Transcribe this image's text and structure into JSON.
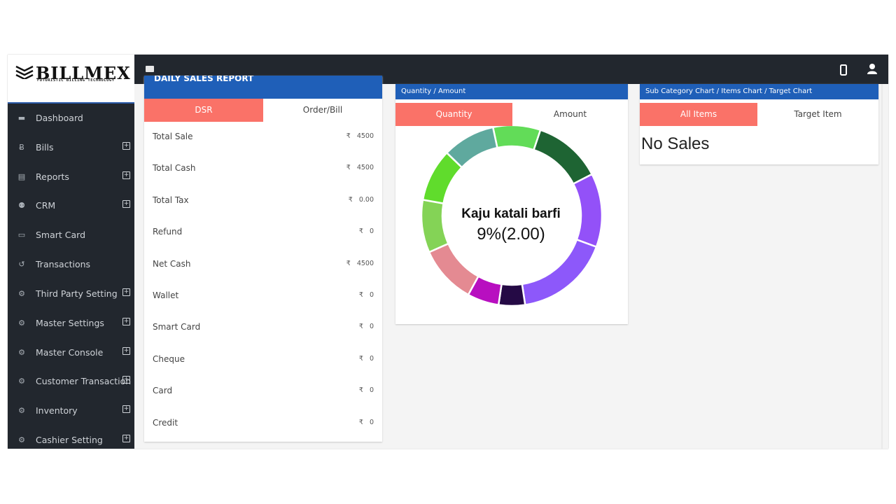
{
  "brand": {
    "name": "BILLMEX",
    "tagline": "FUTURISTIC BILLING TECHNOLOGY"
  },
  "sidebar": {
    "items": [
      {
        "label": "Dashboard",
        "icon": "graduation-cap-icon",
        "glyph": "▬",
        "expandable": false
      },
      {
        "label": "Bills",
        "icon": "bitcoin-icon",
        "glyph": "Ƀ",
        "expandable": true
      },
      {
        "label": "Reports",
        "icon": "area-chart-icon",
        "glyph": "▤",
        "expandable": true
      },
      {
        "label": "CRM",
        "icon": "users-icon",
        "glyph": "⚉",
        "expandable": true
      },
      {
        "label": "Smart Card",
        "icon": "credit-card-icon",
        "glyph": "▭",
        "expandable": false
      },
      {
        "label": "Transactions",
        "icon": "history-icon",
        "glyph": "↺",
        "expandable": false
      },
      {
        "label": "Third Party Setting",
        "icon": "cogs-icon",
        "glyph": "⚙",
        "expandable": true
      },
      {
        "label": "Master Settings",
        "icon": "cogs-icon",
        "glyph": "⚙",
        "expandable": true
      },
      {
        "label": "Master Console",
        "icon": "cog-icon",
        "glyph": "⚙",
        "expandable": true
      },
      {
        "label": "Customer Transaction",
        "icon": "cogs-icon",
        "glyph": "⚙",
        "expandable": true
      },
      {
        "label": "Inventory",
        "icon": "cogs-icon",
        "glyph": "⚙",
        "expandable": true
      },
      {
        "label": "Cashier Setting",
        "icon": "cogs-icon",
        "glyph": "⚙",
        "expandable": true
      }
    ]
  },
  "dsr": {
    "header": "DAILY SALES REPORT",
    "tabs": [
      "DSR",
      "Order/Bill"
    ],
    "currency": "₹",
    "rows": [
      {
        "label": "Total Sale",
        "value": "4500"
      },
      {
        "label": "Total Cash",
        "value": "4500"
      },
      {
        "label": "Total Tax",
        "value": "0.00"
      },
      {
        "label": "Refund",
        "value": "0"
      },
      {
        "label": "Net Cash",
        "value": "4500"
      },
      {
        "label": "Wallet",
        "value": "0"
      },
      {
        "label": "Smart Card",
        "value": "0"
      },
      {
        "label": "Cheque",
        "value": "0"
      },
      {
        "label": "Card",
        "value": "0"
      },
      {
        "label": "Credit",
        "value": "0"
      }
    ]
  },
  "qty_panel": {
    "header": "Quantity / Amount",
    "tabs": [
      "Quantity",
      "Amount"
    ],
    "center_title": "Kaju katali barfi",
    "center_value": "9%(2.00)"
  },
  "sub_panel": {
    "header": "Sub Category Chart / Items Chart / Target Chart",
    "tabs": [
      "All Items",
      "Target Item"
    ],
    "empty": "No Sales"
  },
  "chart_data": {
    "type": "pie",
    "donut": true,
    "slices": [
      {
        "value": 9,
        "color": "#62dc58"
      },
      {
        "value": 13,
        "color": "#1e6433"
      },
      {
        "value": 14,
        "color": "#9351f8"
      },
      {
        "value": 18,
        "color": "#8d58fa"
      },
      {
        "value": 5,
        "color": "#250a45"
      },
      {
        "value": 6,
        "color": "#b80fc0"
      },
      {
        "value": 11,
        "color": "#e48a92"
      },
      {
        "value": 10,
        "color": "#84d356"
      },
      {
        "value": 10,
        "color": "#60dc2c"
      },
      {
        "value": 10,
        "color": "#5fa99e"
      }
    ]
  },
  "colors": {
    "accent": "#fa7268",
    "header_blue": "#1f5fb8",
    "sidebar_bg": "#22272e"
  }
}
